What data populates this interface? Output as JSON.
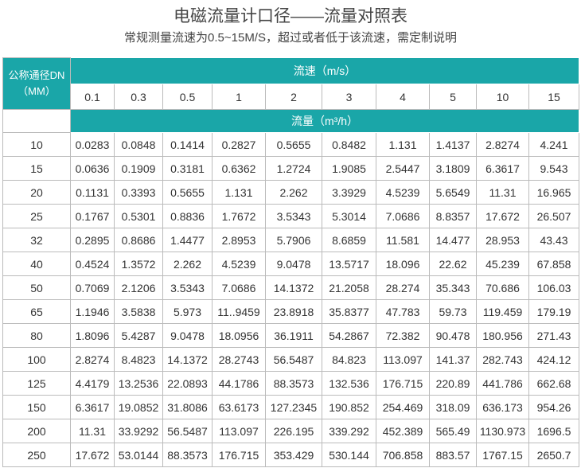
{
  "title": "电磁流量计口径——流量对照表",
  "subtitle": "常规测量流速为0.5~15M/S，超过或者低于该流速，需定制说明",
  "table": {
    "corner": [
      "公称通径DN",
      "（MM）"
    ],
    "speed_header": "流速（m/s）",
    "speeds": [
      "0.1",
      "0.3",
      "0.5",
      "1",
      "2",
      "3",
      "4",
      "5",
      "10",
      "15"
    ],
    "flow_header": "流量（m³/h）",
    "rows": [
      [
        "10",
        "0.0283",
        "0.0848",
        "0.1414",
        "0.2827",
        "0.5655",
        "0.8482",
        "1.131",
        "1.4137",
        "2.8274",
        "4.241"
      ],
      [
        "15",
        "0.0636",
        "0.1909",
        "0.3181",
        "0.6362",
        "1.2724",
        "1.9085",
        "2.5447",
        "3.1809",
        "6.3617",
        "9.543"
      ],
      [
        "20",
        "0.1131",
        "0.3393",
        "0.5655",
        "1.131",
        "2.262",
        "3.3929",
        "4.5239",
        "5.6549",
        "11.31",
        "16.965"
      ],
      [
        "25",
        "0.1767",
        "0.5301",
        "0.8836",
        "1.7672",
        "3.5343",
        "5.3014",
        "7.0686",
        "8.8357",
        "17.672",
        "26.507"
      ],
      [
        "32",
        "0.2895",
        "0.8686",
        "1.4477",
        "2.8953",
        "5.7906",
        "8.6859",
        "11.581",
        "14.477",
        "28.953",
        "43.43"
      ],
      [
        "40",
        "0.4524",
        "1.3572",
        "2.262",
        "4.5239",
        "9.0478",
        "13.5717",
        "18.096",
        "22.62",
        "45.239",
        "67.858"
      ],
      [
        "50",
        "0.7069",
        "2.1206",
        "3.5343",
        "7.0686",
        "14.1372",
        "21.2058",
        "28.274",
        "35.343",
        "70.686",
        "106.03"
      ],
      [
        "65",
        "1.1946",
        "3.5838",
        "5.973",
        "11..9459",
        "23.8918",
        "35.8377",
        "47.783",
        "59.73",
        "119.459",
        "179.19"
      ],
      [
        "80",
        "1.8096",
        "5.4287",
        "9.0478",
        "18.0956",
        "36.1911",
        "54.2867",
        "72.382",
        "90.478",
        "180.956",
        "271.43"
      ],
      [
        "100",
        "2.8274",
        "8.4823",
        "14.1372",
        "28.2743",
        "56.5487",
        "84.823",
        "113.097",
        "141.37",
        "282.743",
        "424.12"
      ],
      [
        "125",
        "4.4179",
        "13.2536",
        "22.0893",
        "44.1786",
        "88.3573",
        "132.536",
        "176.715",
        "220.89",
        "441.786",
        "662.68"
      ],
      [
        "150",
        "6.3617",
        "19.0852",
        "31.8086",
        "63.6173",
        "127.2345",
        "190.852",
        "254.469",
        "318.09",
        "636.173",
        "954.26"
      ],
      [
        "200",
        "11.31",
        "33.9292",
        "56.5487",
        "113.097",
        "226.195",
        "339.292",
        "452.389",
        "565.49",
        "1130.973",
        "1696.5"
      ],
      [
        "250",
        "17.672",
        "53.0144",
        "88.3573",
        "176.715",
        "353.429",
        "530.144",
        "706.858",
        "883.57",
        "1767.15",
        "2650.7"
      ]
    ]
  }
}
